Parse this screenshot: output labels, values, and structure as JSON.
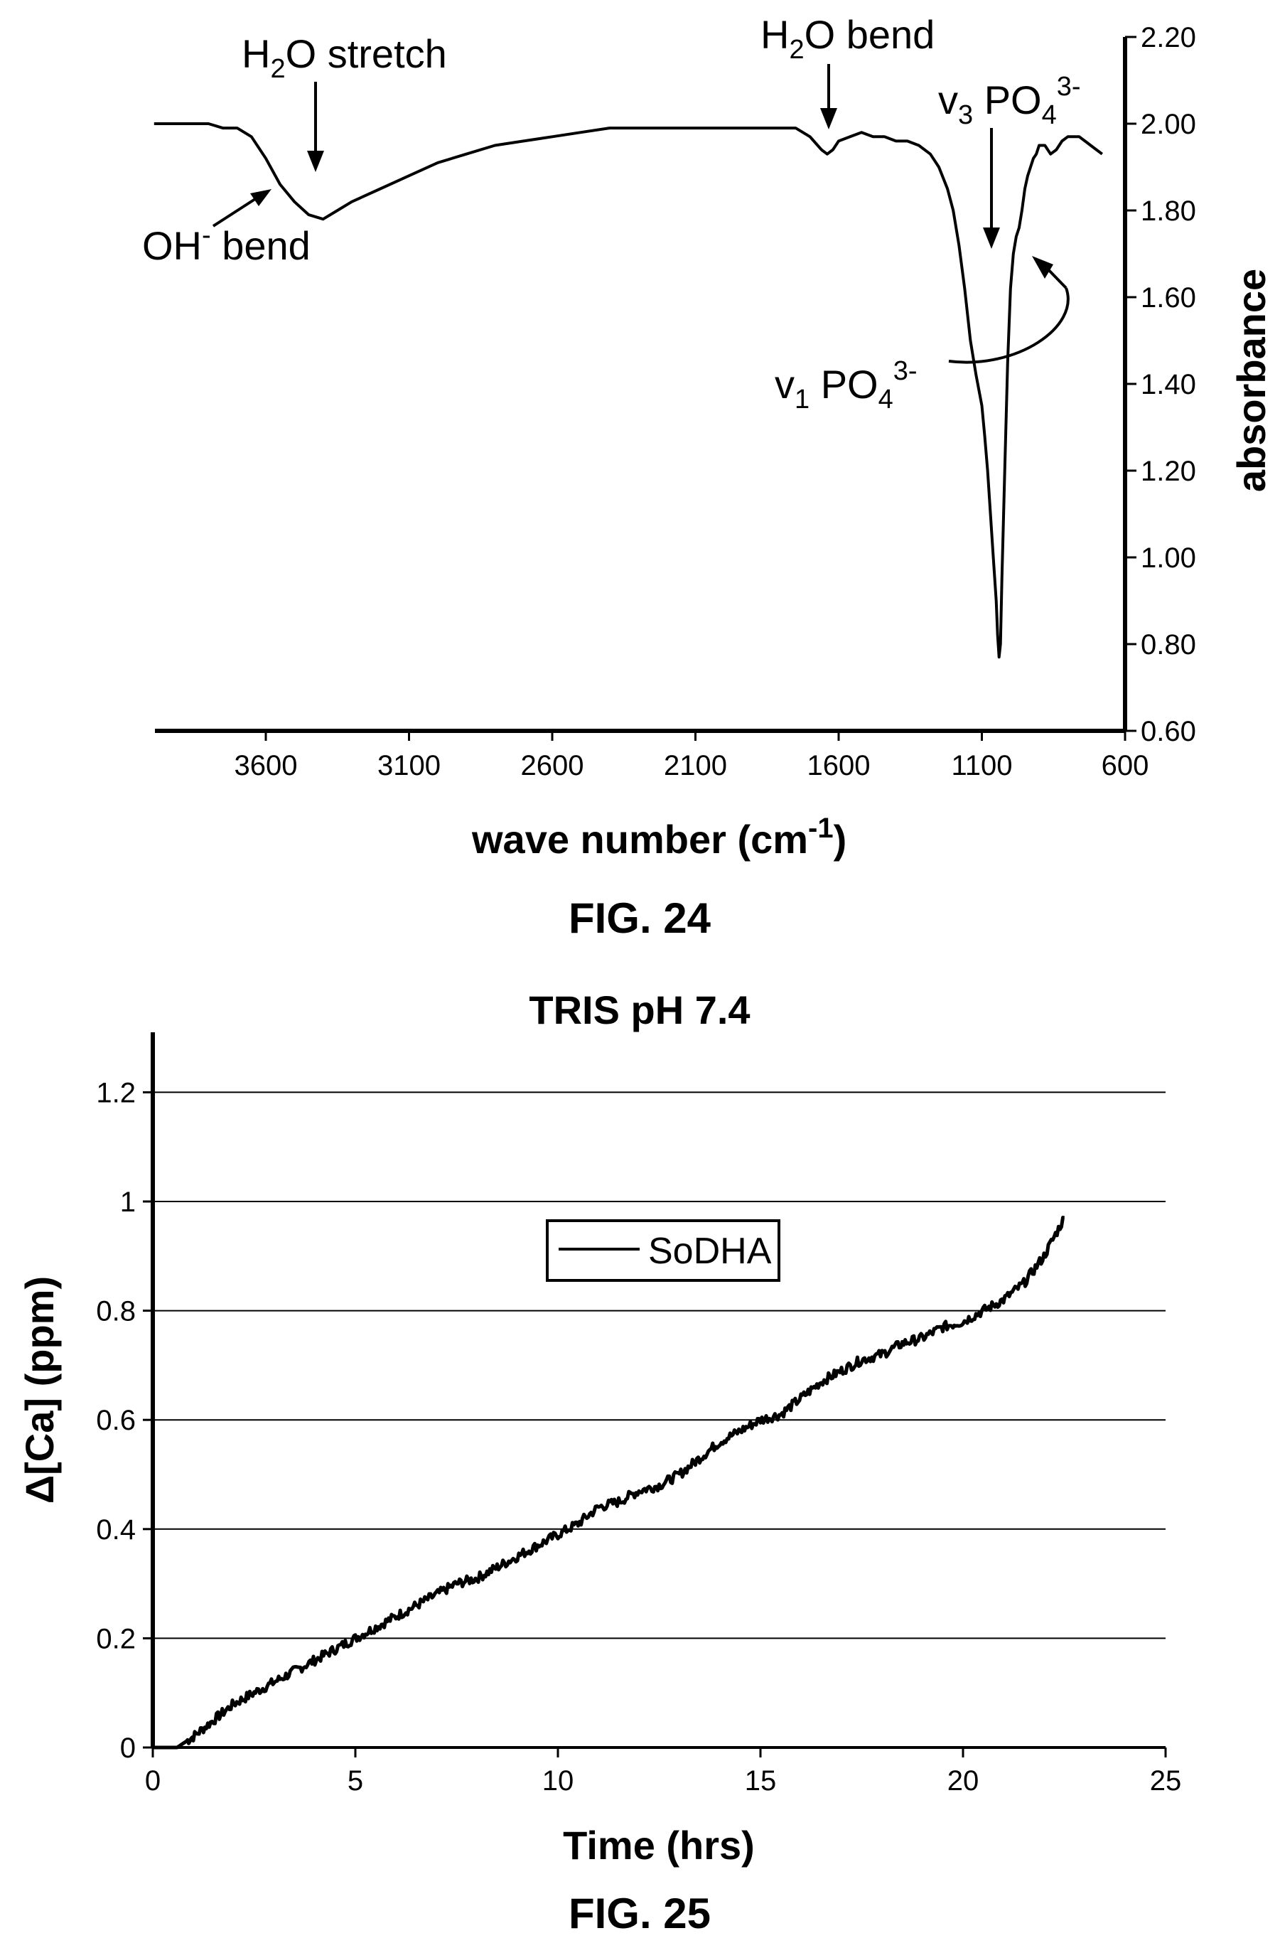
{
  "chart_data": [
    {
      "type": "line",
      "caption": "FIG. 24",
      "xlabel": "wave number (cm",
      "xlabel_sup": "-1",
      "xlabel_end": ")",
      "ylabel": "absorbance",
      "xlim": [
        4000,
        600
      ],
      "ylim": [
        0.6,
        2.2
      ],
      "x_ticks": [
        3600,
        3100,
        2600,
        2100,
        1600,
        1100,
        600
      ],
      "y_ticks": [
        "0.60",
        "0.80",
        "1.00",
        "1.20",
        "1.40",
        "1.60",
        "1.80",
        "2.00",
        "2.20"
      ],
      "y_axis_side": "right",
      "grid": false,
      "annotations": {
        "h2o_stretch": {
          "base": "H",
          "sub": "2",
          "rest": "O stretch"
        },
        "h2o_bend": {
          "base": "H",
          "sub": "2",
          "rest": "O bend"
        },
        "oh_bend": {
          "base": "OH",
          "sup": "-",
          "rest": " bend"
        },
        "v3": {
          "base": "v",
          "sub": "3",
          "mid": " PO",
          "sub2": "4",
          "sup": "3-"
        },
        "v1": {
          "base": "v",
          "sub": "1",
          "mid": " PO",
          "sub2": "4",
          "sup": "3-"
        }
      },
      "series": [
        {
          "x": [
            3990,
            3900,
            3800,
            3750,
            3700,
            3650,
            3600,
            3550,
            3500,
            3450,
            3400,
            3350,
            3300,
            3200,
            3100,
            3000,
            2900,
            2800,
            2700,
            2600,
            2500,
            2400,
            2300,
            2200,
            2100,
            2000,
            1900,
            1800,
            1750,
            1700,
            1660,
            1640,
            1620,
            1600,
            1560,
            1520,
            1480,
            1440,
            1400,
            1360,
            1320,
            1280,
            1250,
            1220,
            1200,
            1180,
            1160,
            1140,
            1120,
            1100,
            1090,
            1080,
            1070,
            1060,
            1050,
            1045,
            1040,
            1035,
            1030,
            1020,
            1010,
            1000,
            990,
            980,
            970,
            960,
            950,
            940,
            930,
            920,
            910,
            900,
            880,
            860,
            840,
            820,
            800,
            780,
            760,
            740,
            720,
            700,
            680
          ],
          "y": [
            2.0,
            2.0,
            2.0,
            1.99,
            1.99,
            1.97,
            1.92,
            1.86,
            1.82,
            1.79,
            1.78,
            1.8,
            1.82,
            1.85,
            1.88,
            1.91,
            1.93,
            1.95,
            1.96,
            1.97,
            1.98,
            1.99,
            1.99,
            1.99,
            1.99,
            1.99,
            1.99,
            1.99,
            1.99,
            1.97,
            1.94,
            1.93,
            1.94,
            1.96,
            1.97,
            1.98,
            1.97,
            1.97,
            1.96,
            1.96,
            1.95,
            1.93,
            1.9,
            1.85,
            1.8,
            1.72,
            1.62,
            1.5,
            1.42,
            1.35,
            1.28,
            1.2,
            1.1,
            1.0,
            0.9,
            0.82,
            0.77,
            0.8,
            0.95,
            1.2,
            1.45,
            1.62,
            1.7,
            1.74,
            1.76,
            1.8,
            1.85,
            1.88,
            1.9,
            1.92,
            1.93,
            1.95,
            1.95,
            1.93,
            1.94,
            1.96,
            1.97,
            1.97,
            1.97,
            1.96,
            1.95,
            1.94,
            1.93
          ]
        }
      ]
    },
    {
      "type": "line",
      "title": "TRIS pH 7.4",
      "caption": "FIG. 25",
      "xlabel": "Time (hrs)",
      "ylabel": "Δ[Ca] (ppm)",
      "xlim": [
        0,
        25
      ],
      "ylim": [
        0,
        1.3
      ],
      "x_ticks": [
        "0",
        "5",
        "10",
        "15",
        "20",
        "25"
      ],
      "y_ticks": [
        "0",
        "0.2",
        "0.4",
        "0.6",
        "0.8",
        "1",
        "1.2"
      ],
      "grid": true,
      "legend_position": "top-center",
      "series": [
        {
          "name": "SoDHA",
          "x": [
            0,
            0.6,
            1.0,
            1.5,
            2.0,
            2.5,
            3.0,
            3.5,
            4.0,
            4.5,
            5.0,
            5.5,
            6.0,
            6.5,
            7.0,
            7.5,
            8.0,
            8.5,
            9.0,
            9.5,
            10.0,
            10.5,
            11.0,
            11.5,
            12.0,
            12.5,
            13.0,
            13.5,
            14.0,
            14.5,
            15.0,
            15.5,
            16.0,
            16.5,
            17.0,
            17.5,
            18.0,
            18.5,
            19.0,
            19.5,
            20.0,
            20.5,
            21.0,
            21.5,
            22.0,
            22.5
          ],
          "y": [
            0,
            0.0,
            0.02,
            0.05,
            0.08,
            0.1,
            0.12,
            0.14,
            0.16,
            0.18,
            0.2,
            0.22,
            0.24,
            0.26,
            0.28,
            0.3,
            0.31,
            0.33,
            0.35,
            0.37,
            0.39,
            0.41,
            0.44,
            0.45,
            0.47,
            0.48,
            0.5,
            0.53,
            0.56,
            0.58,
            0.6,
            0.61,
            0.64,
            0.67,
            0.69,
            0.71,
            0.72,
            0.74,
            0.75,
            0.77,
            0.78,
            0.8,
            0.82,
            0.85,
            0.9,
            0.97
          ]
        }
      ]
    }
  ]
}
